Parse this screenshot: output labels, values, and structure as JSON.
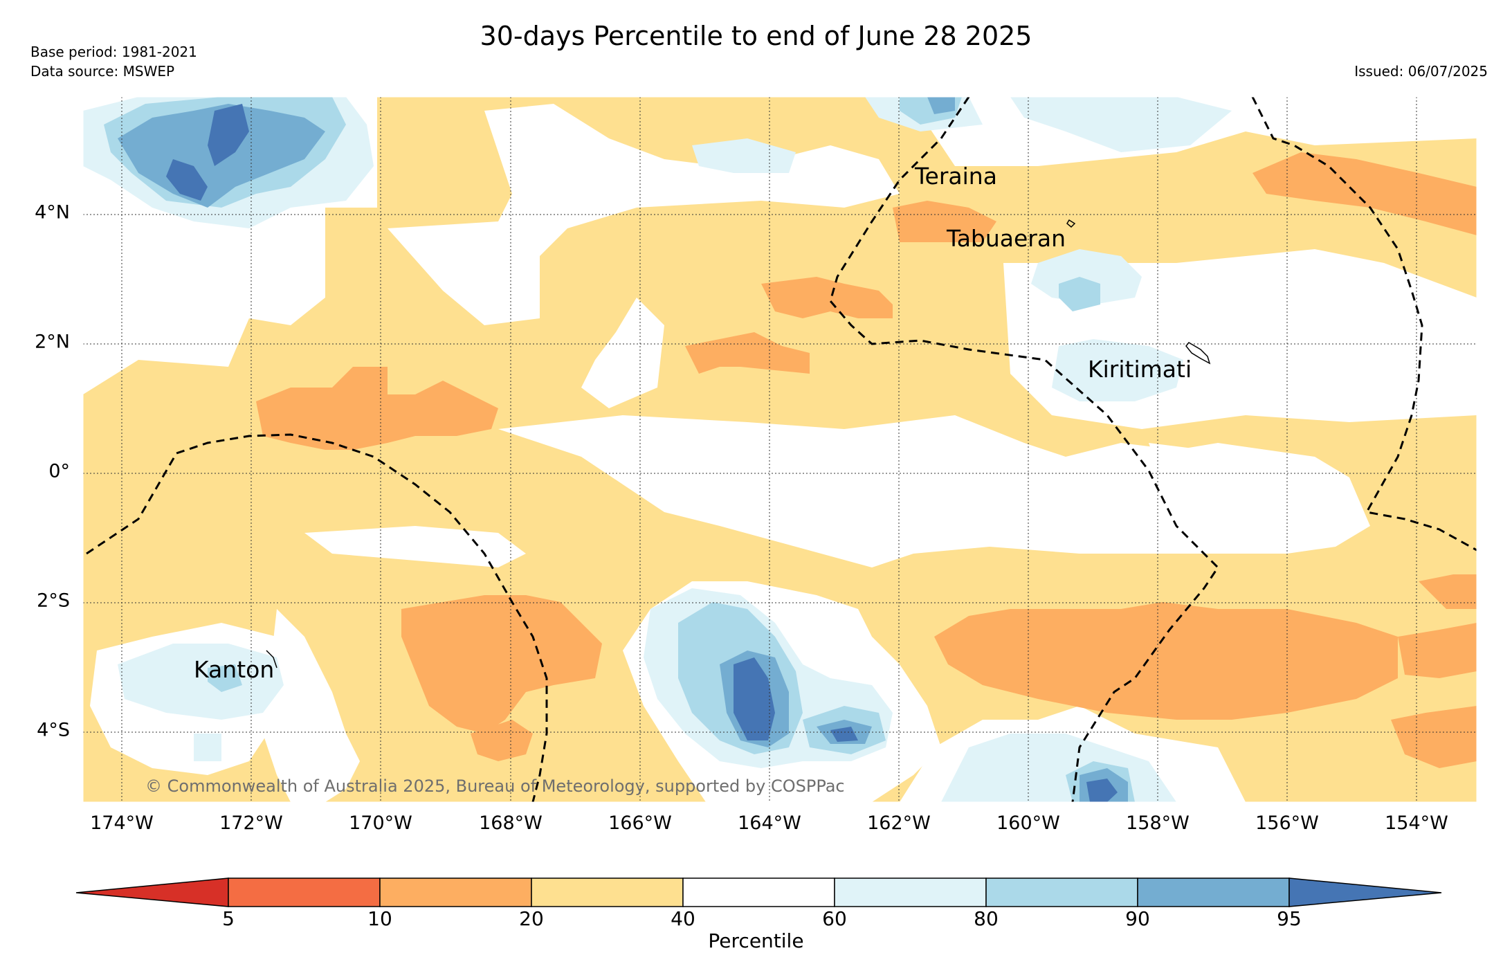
{
  "title": "30-days Percentile to end of June 28 2025",
  "base_period": "Base period: 1981-2021",
  "data_source": "Data source: MSWEP",
  "issued": "Issued: 06/07/2025",
  "copyright": "© Commonwealth of Australia 2025, Bureau of Meteorology, supported by COSPPac",
  "places": [
    "Teraina",
    "Tabuaeran",
    "Kiritimati",
    "Kanton"
  ],
  "longitude_labels": [
    "174°W",
    "172°W",
    "170°W",
    "168°W",
    "166°W",
    "164°W",
    "162°W",
    "160°W",
    "158°W",
    "156°W",
    "154°W"
  ],
  "latitude_labels": [
    "4°N",
    "2°N",
    "0°",
    "2°S",
    "4°S"
  ],
  "colorbar": {
    "title": "Percentile",
    "ticks": [
      "5",
      "10",
      "20",
      "40",
      "60",
      "80",
      "90",
      "95"
    ],
    "colors": [
      "#d73027",
      "#f46d43",
      "#fdae61",
      "#fee090",
      "#ffffff",
      "#e0f3f8",
      "#abd9e9",
      "#74add1",
      "#4575b4"
    ]
  }
}
